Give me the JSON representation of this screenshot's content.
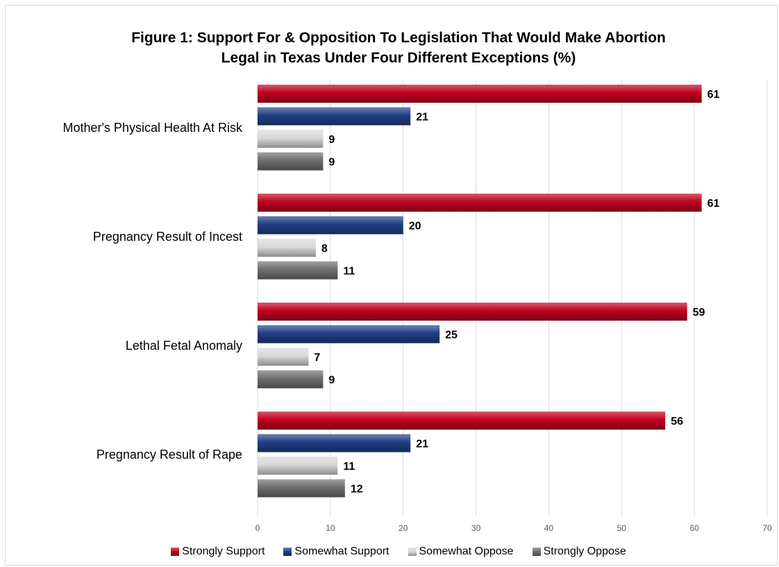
{
  "chart_data": {
    "type": "bar",
    "orientation": "horizontal",
    "title_line1": "Figure 1: Support For & Opposition To Legislation That Would Make Abortion",
    "title_line2": "Legal in Texas Under Four Different Exceptions (%)",
    "categories": [
      "Mother's Physical Health At Risk",
      "Pregnancy Result of Incest",
      "Lethal Fetal Anomaly",
      "Pregnancy Result of Rape"
    ],
    "series": [
      {
        "name": "Strongly Support",
        "values": [
          61,
          61,
          59,
          56
        ],
        "color": "#c00020"
      },
      {
        "name": "Somewhat Support",
        "values": [
          21,
          20,
          25,
          21
        ],
        "color": "#1f3f86"
      },
      {
        "name": "Somewhat Oppose",
        "values": [
          9,
          8,
          7,
          11
        ],
        "color": "#d9d9d9"
      },
      {
        "name": "Strongly Oppose",
        "values": [
          9,
          11,
          9,
          12
        ],
        "color": "#6e6e6e"
      }
    ],
    "xlim": [
      0,
      70
    ],
    "xticks": [
      "0",
      "10",
      "20",
      "30",
      "40",
      "50",
      "60",
      "70"
    ],
    "grid": true,
    "legend_position": "bottom"
  }
}
